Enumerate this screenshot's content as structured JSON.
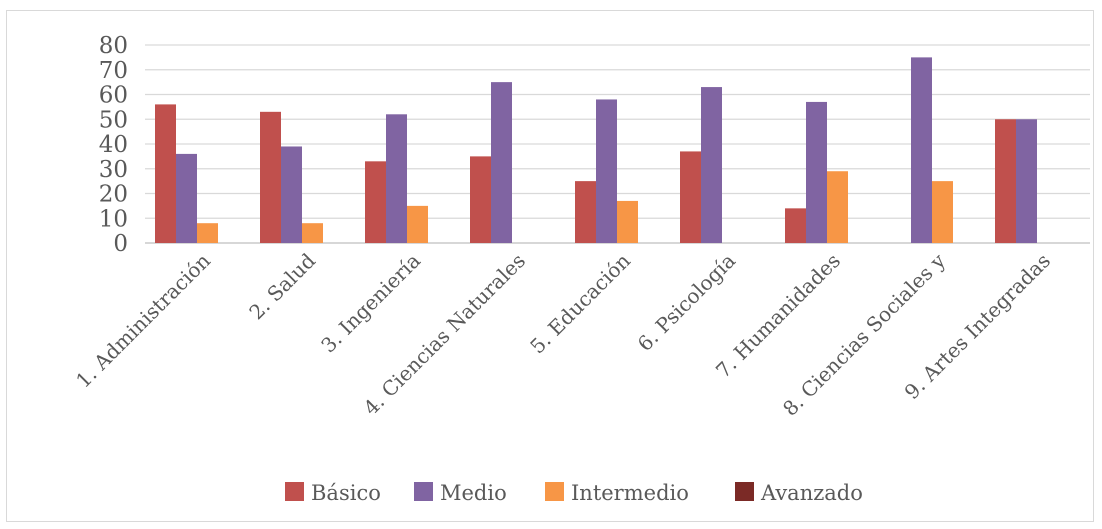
{
  "chart_data": {
    "type": "bar",
    "categories": [
      "1. Administración",
      "2. Salud",
      "3. Ingeniería",
      "4. Ciencias Naturales",
      "5. Educación",
      "6. Psicología",
      "7. Humanidades",
      "8. Ciencias Sociales y",
      "9. Artes Integradas"
    ],
    "series": [
      {
        "name": "Básico",
        "color": "#c0504d",
        "values": [
          56,
          53,
          33,
          35,
          25,
          37,
          14,
          0,
          50
        ]
      },
      {
        "name": "Medio",
        "color": "#8064a2",
        "values": [
          36,
          39,
          52,
          65,
          58,
          63,
          57,
          75,
          50
        ]
      },
      {
        "name": "Intermedio",
        "color": "#f79646",
        "values": [
          8,
          8,
          15,
          0,
          17,
          0,
          29,
          25,
          0
        ]
      },
      {
        "name": "Avanzado",
        "color": "#7b2a26",
        "values": [
          0,
          0,
          0,
          0,
          0,
          0,
          0,
          0,
          0
        ]
      }
    ],
    "ylim": [
      0,
      80
    ],
    "yticks": [
      0,
      10,
      20,
      30,
      40,
      50,
      60,
      70,
      80
    ],
    "title": "",
    "xlabel": "",
    "ylabel": "",
    "grid": true,
    "legend": "bottom"
  }
}
